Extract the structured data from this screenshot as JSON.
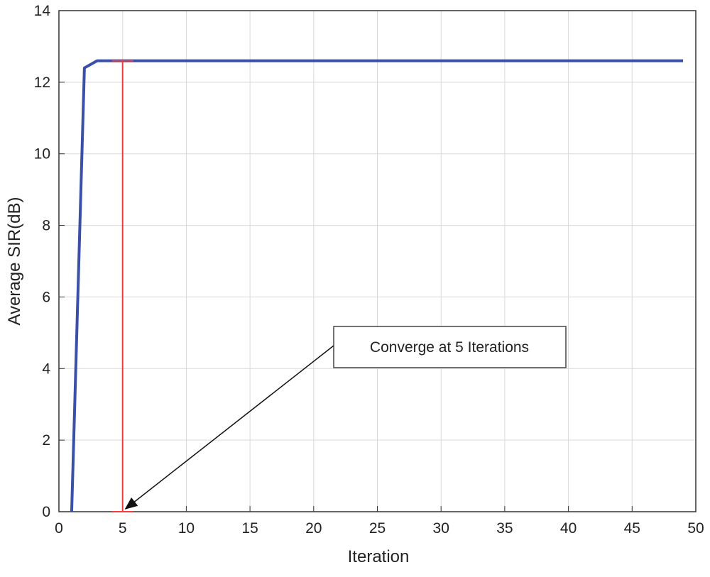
{
  "chart_data": {
    "type": "line",
    "xlabel": "Iteration",
    "ylabel": "Average SIR(dB)",
    "x": [
      1,
      2,
      3,
      4,
      5,
      6,
      7,
      8,
      9,
      10,
      11,
      12,
      13,
      14,
      15,
      16,
      17,
      18,
      19,
      20,
      21,
      22,
      23,
      24,
      25,
      26,
      27,
      28,
      29,
      30,
      31,
      32,
      33,
      34,
      35,
      36,
      37,
      38,
      39,
      40,
      41,
      42,
      43,
      44,
      45,
      46,
      47,
      48,
      49
    ],
    "series": [
      {
        "color": "#3a4fa8",
        "values": [
          0,
          12.4,
          12.6,
          12.6,
          12.6,
          12.6,
          12.6,
          12.6,
          12.6,
          12.6,
          12.6,
          12.6,
          12.6,
          12.6,
          12.6,
          12.6,
          12.6,
          12.6,
          12.6,
          12.6,
          12.6,
          12.6,
          12.6,
          12.6,
          12.6,
          12.6,
          12.6,
          12.6,
          12.6,
          12.6,
          12.6,
          12.6,
          12.6,
          12.6,
          12.6,
          12.6,
          12.6,
          12.6,
          12.6,
          12.6,
          12.6,
          12.6,
          12.6,
          12.6,
          12.6,
          12.6,
          12.6,
          12.6,
          12.6
        ]
      }
    ],
    "marker": {
      "x": 5,
      "y": [
        0,
        12.6
      ],
      "color": "#f03c3c"
    },
    "annotation": {
      "text": "Converge at 5 Iterations",
      "x": 5,
      "y": 0
    },
    "xlim": [
      0,
      50
    ],
    "xticks": [
      0,
      5,
      10,
      15,
      20,
      25,
      30,
      35,
      40,
      45,
      50
    ],
    "ylim": [
      0,
      14
    ],
    "yticks": [
      0,
      2,
      4,
      6,
      8,
      10,
      12,
      14
    ],
    "grid": true
  }
}
